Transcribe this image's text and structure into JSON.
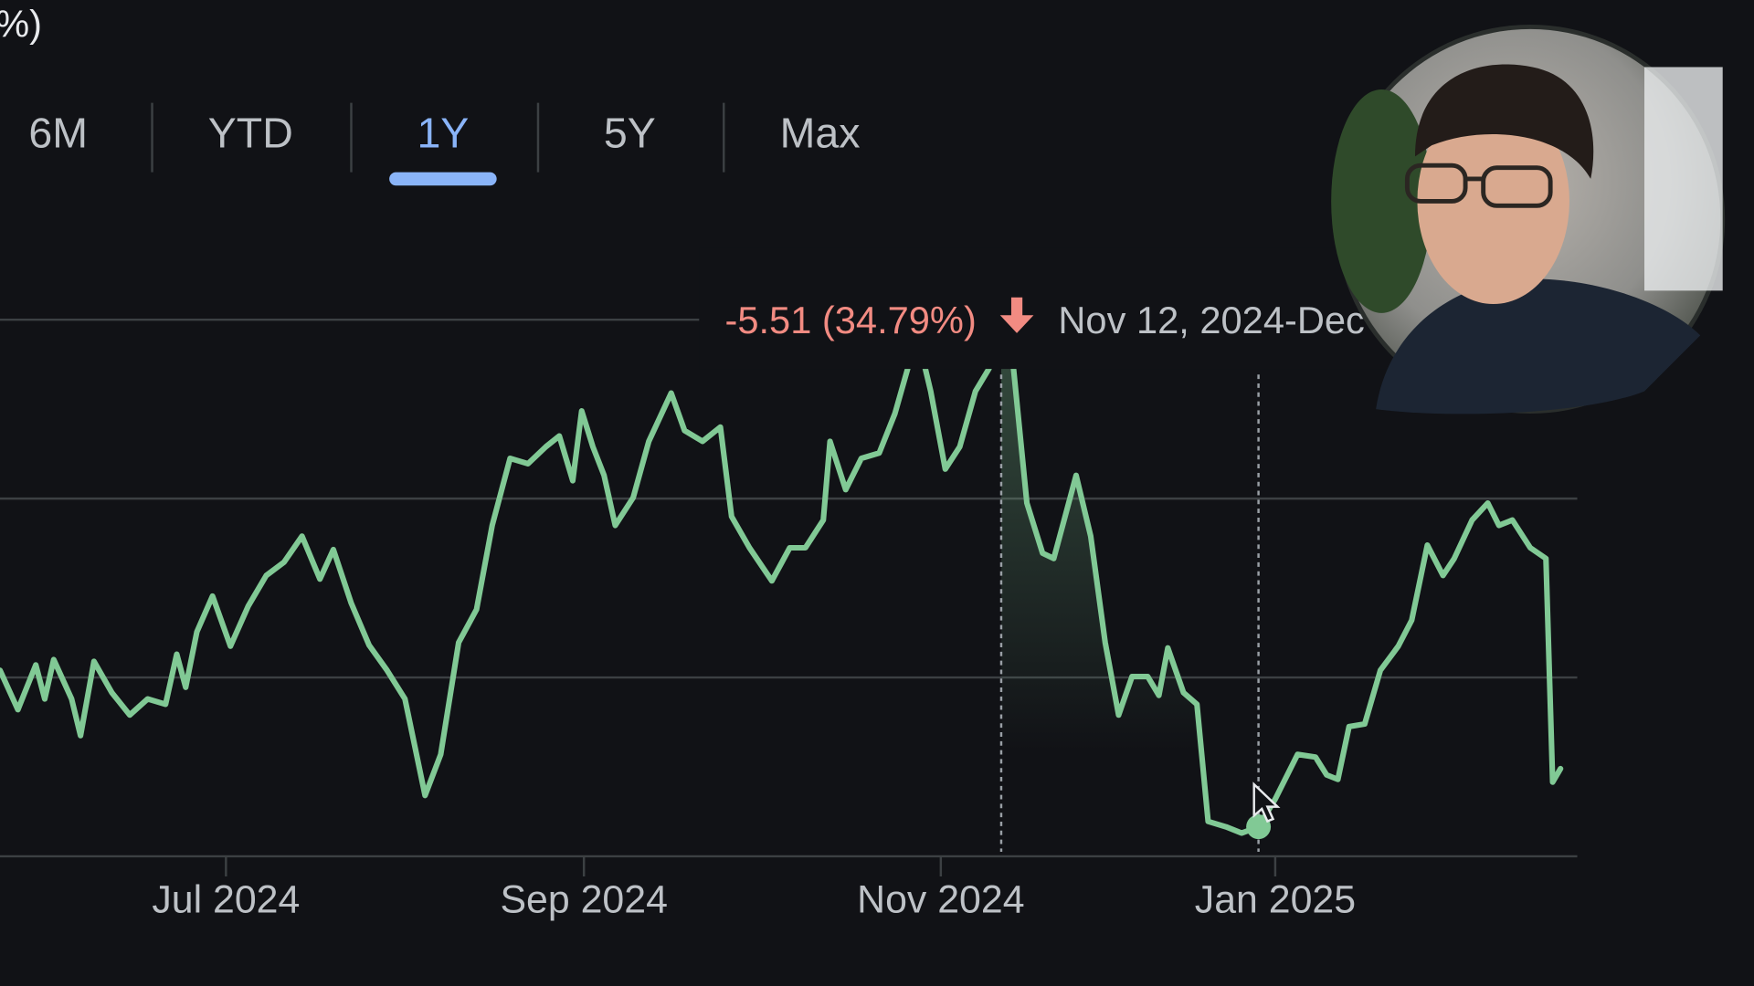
{
  "header_fragment": "%)",
  "tabs": [
    "6M",
    "YTD",
    "1Y",
    "5Y",
    "Max"
  ],
  "active_tab": 2,
  "tooltip": {
    "change": "-5.51 (34.79%)",
    "range": "Nov 12, 2024-Dec"
  },
  "chart_data": {
    "type": "line",
    "color": "#81c995",
    "grid": true,
    "xlim": [
      0,
      176.25
    ],
    "ylim": [
      10,
      16
    ],
    "yticks": [
      10,
      12,
      14,
      16
    ],
    "xticks": [
      {
        "value": 25.25,
        "label": "Jul 2024"
      },
      {
        "value": 65.25,
        "label": "Sep 2024"
      },
      {
        "value": 105.13,
        "label": "Nov 2024"
      },
      {
        "value": 142.5,
        "label": "Jan 2025"
      }
    ],
    "selection_x": [
      111.88,
      140.63
    ],
    "x": [
      0,
      2,
      4,
      5,
      6,
      8,
      9,
      10.5,
      12.5,
      14.5,
      16.5,
      18.5,
      19.75,
      20.75,
      22,
      23.75,
      25.75,
      27.75,
      29.75,
      31.75,
      33.75,
      35.75,
      37.25,
      39.25,
      41.25,
      43.25,
      45.25,
      47.5,
      49.25,
      51.25,
      53.25,
      55,
      57,
      59,
      61,
      62.5,
      64,
      65,
      66.25,
      67.5,
      68.75,
      70.75,
      72.5,
      75,
      76.5,
      78.5,
      80.5,
      81.75,
      83.75,
      86.25,
      88.25,
      90,
      92,
      92.75,
      94.5,
      96.25,
      98.25,
      100,
      102.5,
      104,
      105.63,
      107.25,
      109,
      110.5,
      111.88,
      113.13,
      114.75,
      116.5,
      117.75,
      118.75,
      120.25,
      121.88,
      123.5,
      125,
      126.5,
      128.25,
      129.5,
      130.5,
      132.25,
      133.75,
      135,
      137,
      138.75,
      140.63,
      142.5,
      145,
      147,
      148.25,
      149.5,
      150.75,
      152.5,
      154.25,
      156.25,
      157.75,
      159.5,
      161.25,
      162.5,
      164.5,
      166.25,
      167.5,
      169,
      171,
      172.75,
      173.5,
      174.38
    ],
    "values": [
      12.08,
      11.64,
      12.14,
      11.76,
      12.2,
      11.76,
      11.35,
      12.18,
      11.83,
      11.58,
      11.76,
      11.7,
      12.26,
      11.89,
      12.51,
      12.91,
      12.35,
      12.8,
      13.14,
      13.29,
      13.58,
      13.1,
      13.43,
      12.83,
      12.36,
      12.08,
      11.76,
      10.68,
      11.14,
      12.39,
      12.76,
      13.7,
      14.45,
      14.39,
      14.58,
      14.7,
      14.2,
      14.98,
      14.58,
      14.26,
      13.7,
      14.01,
      14.64,
      15.18,
      14.76,
      14.64,
      14.8,
      13.8,
      13.45,
      13.08,
      13.45,
      13.45,
      13.76,
      14.64,
      14.1,
      14.45,
      14.51,
      14.95,
      15.83,
      15.2,
      14.33,
      14.58,
      15.2,
      15.45,
      15.84,
      15.58,
      13.95,
      13.39,
      13.33,
      13.7,
      14.26,
      13.58,
      12.39,
      11.58,
      12.01,
      12.01,
      11.8,
      12.33,
      11.83,
      11.7,
      10.39,
      10.33,
      10.26,
      10.33,
      10.64,
      11.14,
      11.11,
      10.91,
      10.86,
      11.45,
      11.48,
      12.08,
      12.35,
      12.64,
      13.48,
      13.14,
      13.33,
      13.76,
      13.95,
      13.7,
      13.76,
      13.45,
      13.33,
      10.83,
      10.98
    ]
  }
}
